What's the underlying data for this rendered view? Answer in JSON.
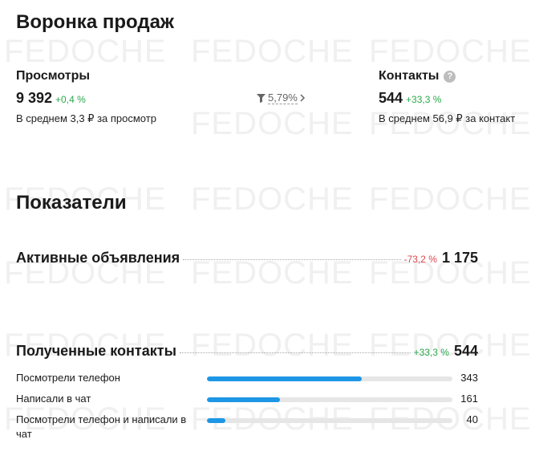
{
  "watermark": "FEDOCHE",
  "funnel": {
    "title": "Воронка продаж",
    "views": {
      "label": "Просмотры",
      "value": "9 392",
      "delta": "+0,4 %",
      "sub": "В среднем 3,3 ₽ за просмотр"
    },
    "conversion": {
      "value": "5,79%",
      "icon": "funnel-icon",
      "arrow_icon": "chevron-right-icon"
    },
    "contacts": {
      "label": "Контакты",
      "help": "?",
      "value": "544",
      "delta": "+33,3 %",
      "sub": "В среднем 56,9 ₽ за контакт"
    }
  },
  "kpi": {
    "title": "Показатели",
    "active_ads": {
      "label": "Активные объявления",
      "delta": "-73,2 %",
      "value": "1 175"
    },
    "contacts_received": {
      "label": "Полученные контакты",
      "delta": "+33,3 %",
      "value": "544",
      "breakdown_max": 544,
      "breakdown": [
        {
          "label": "Посмотрели телефон",
          "count": 343
        },
        {
          "label": "Написали в чат",
          "count": 161
        },
        {
          "label": "Посмотрели телефон и написали в чат",
          "count": 40
        }
      ]
    }
  },
  "colors": {
    "positive": "#2aa84a",
    "negative": "#e0454b",
    "bar": "#1e96e6",
    "track": "#e6e6e6"
  }
}
